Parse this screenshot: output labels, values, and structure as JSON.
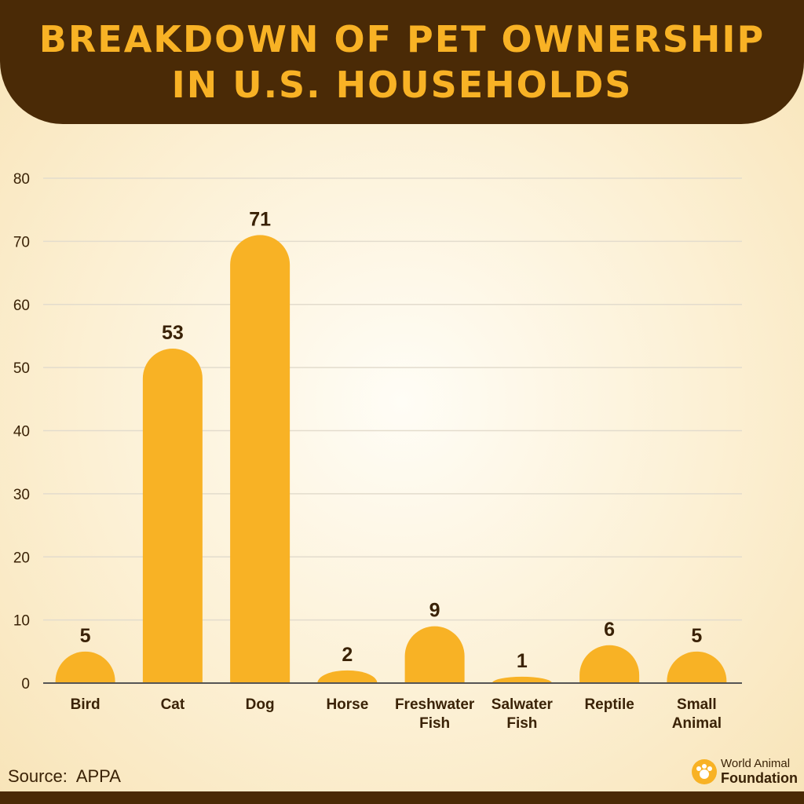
{
  "chart_data": {
    "type": "bar",
    "title_lines": [
      "BREAKDOWN OF PET OWNERSHIP",
      "IN U.S. HOUSEHOLDS"
    ],
    "categories": [
      [
        "Bird"
      ],
      [
        "Cat"
      ],
      [
        "Dog"
      ],
      [
        "Horse"
      ],
      [
        "Freshwater",
        "Fish"
      ],
      [
        "Salwater",
        "Fish"
      ],
      [
        "Reptile"
      ],
      [
        "Small",
        "Animal"
      ]
    ],
    "values": [
      5,
      53,
      71,
      2,
      9,
      1,
      6,
      5
    ],
    "ylim": [
      0,
      80
    ],
    "yticks": [
      0,
      10,
      20,
      30,
      40,
      50,
      60,
      70,
      80
    ],
    "grid": true,
    "xlabel": "",
    "ylabel": ""
  },
  "footer": {
    "source": "Source:  APPA",
    "logo_line1": "World Animal",
    "logo_line2": "Foundation"
  },
  "colors": {
    "header_bg": "#4a2a06",
    "title": "#f8b225",
    "bar": "#f8b225",
    "text": "#3a2206",
    "grid": "#e3dccd",
    "axis": "#555555"
  }
}
